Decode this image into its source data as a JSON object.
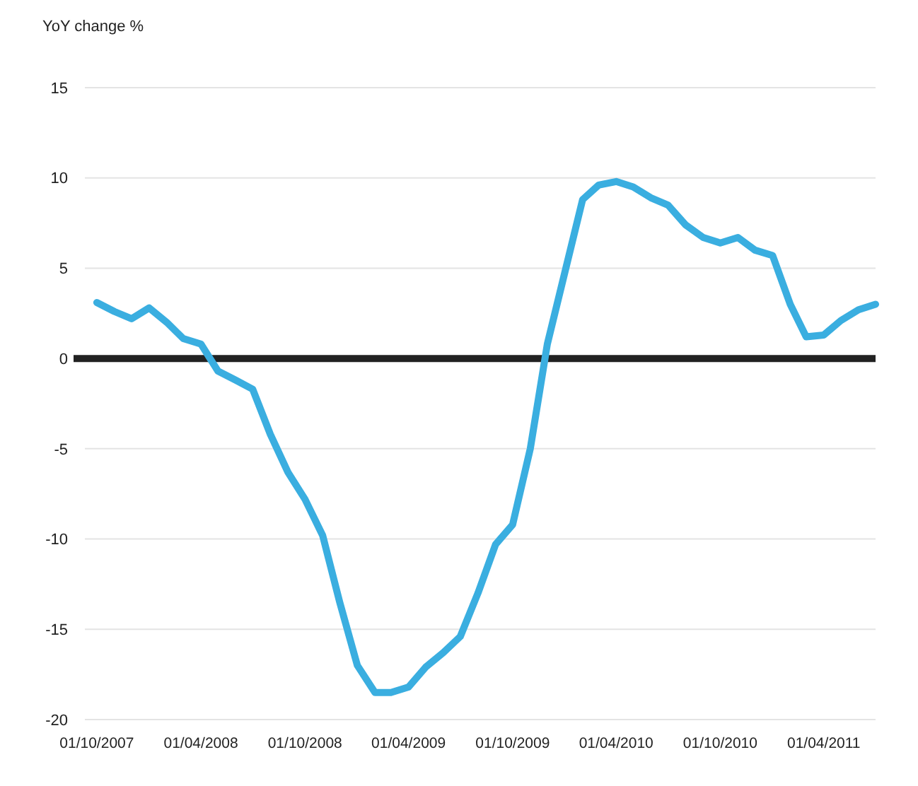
{
  "chart_data": {
    "type": "line",
    "ylabel": "YoY change %",
    "x": [
      "2007-10",
      "2007-11",
      "2007-12",
      "2008-01",
      "2008-02",
      "2008-03",
      "2008-04",
      "2008-05",
      "2008-06",
      "2008-07",
      "2008-08",
      "2008-09",
      "2008-10",
      "2008-11",
      "2008-12",
      "2009-01",
      "2009-02",
      "2009-03",
      "2009-04",
      "2009-05",
      "2009-06",
      "2009-07",
      "2009-08",
      "2009-09",
      "2009-10",
      "2009-11",
      "2009-12",
      "2010-01",
      "2010-02",
      "2010-03",
      "2010-04",
      "2010-05",
      "2010-06",
      "2010-07",
      "2010-08",
      "2010-09",
      "2010-10",
      "2010-11",
      "2010-12",
      "2011-01",
      "2011-02",
      "2011-03",
      "2011-04",
      "2011-05",
      "2011-06",
      "2011-07"
    ],
    "series": [
      {
        "color": "#3aaee0",
        "values": [
          3.1,
          2.6,
          2.2,
          2.8,
          2.0,
          1.1,
          0.8,
          -0.7,
          -1.2,
          -1.7,
          -4.2,
          -6.3,
          -7.8,
          -9.8,
          -13.5,
          -17,
          -18.5,
          -18.5,
          -18.2,
          -17.1,
          -16.3,
          -15.4,
          -13.0,
          -10.3,
          -9.2,
          -5.0,
          0.8,
          4.8,
          8.8,
          9.6,
          9.8,
          9.5,
          8.9,
          8.5,
          7.4,
          6.7,
          6.4,
          6.7,
          6.0,
          5.7,
          3.0,
          1.2,
          1.3,
          2.1,
          2.7,
          3.0
        ]
      }
    ],
    "xlim": [
      "2007-09-10",
      "2011-07-01"
    ],
    "xticks": [
      {
        "value": "2007-10-01",
        "label": "01/10/2007"
      },
      {
        "value": "2008-04-01",
        "label": "01/04/2008"
      },
      {
        "value": "2008-10-01",
        "label": "01/10/2008"
      },
      {
        "value": "2009-04-01",
        "label": "01/04/2009"
      },
      {
        "value": "2009-10-01",
        "label": "01/10/2009"
      },
      {
        "value": "2010-04-01",
        "label": "01/04/2010"
      },
      {
        "value": "2010-10-01",
        "label": "01/10/2010"
      },
      {
        "value": "2011-04-01",
        "label": "01/04/2011"
      }
    ],
    "ylim": [
      -20,
      15
    ],
    "yticks": [
      -20,
      -15,
      -10,
      -5,
      0,
      5,
      10,
      15
    ],
    "grid": "y",
    "marker": "none",
    "line_style": "solid",
    "ref_lines": [
      {
        "axis": "y",
        "value": 0,
        "color": "#222222"
      }
    ]
  }
}
